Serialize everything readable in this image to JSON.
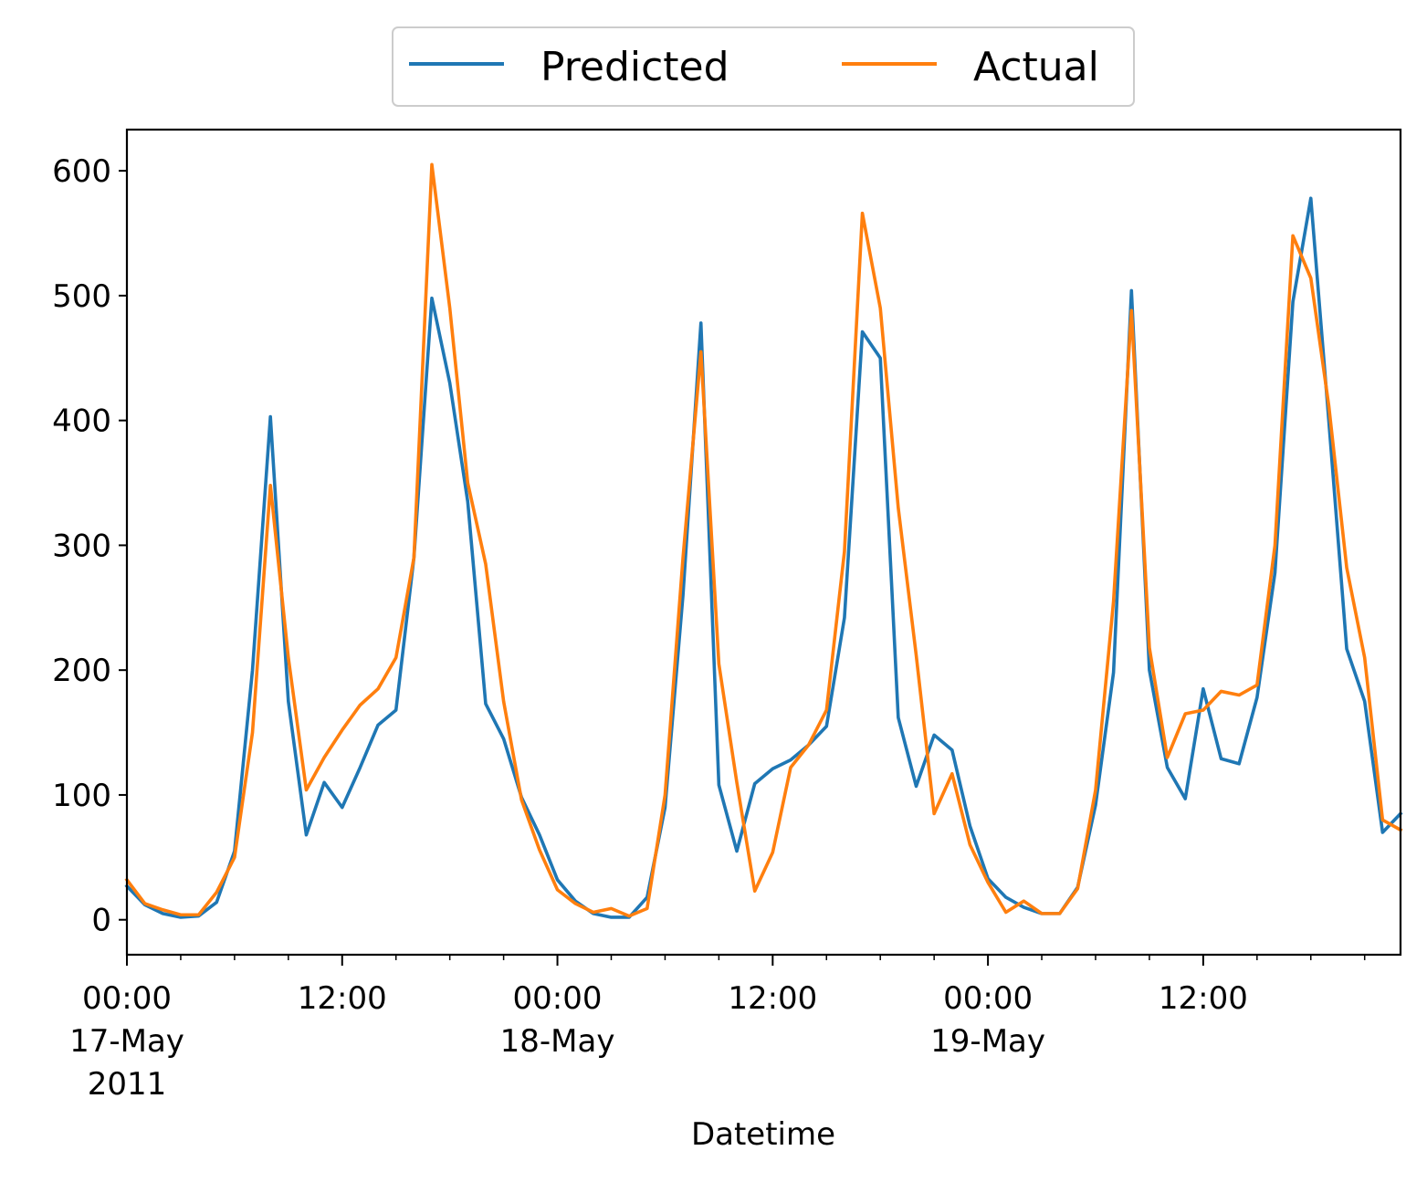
{
  "chart_data": {
    "type": "line",
    "title": "",
    "xlabel": "Datetime",
    "ylabel": "",
    "x_start": "2011-05-17 00:00",
    "x_end": "2011-05-19 23:00",
    "x_step": "1 hour",
    "xlim": [
      "2011-05-17 00:00",
      "2011-05-19 23:00"
    ],
    "ylim": [
      -28,
      633
    ],
    "yticks": [
      0,
      100,
      200,
      300,
      400,
      500,
      600
    ],
    "xticks": [
      {
        "at": "2011-05-17 00:00",
        "lines": [
          "00:00",
          "17-May",
          "2011"
        ]
      },
      {
        "at": "2011-05-17 12:00",
        "lines": [
          "12:00"
        ]
      },
      {
        "at": "2011-05-18 00:00",
        "lines": [
          "00:00",
          "18-May"
        ]
      },
      {
        "at": "2011-05-18 12:00",
        "lines": [
          "12:00"
        ]
      },
      {
        "at": "2011-05-19 00:00",
        "lines": [
          "00:00",
          "19-May"
        ]
      },
      {
        "at": "2011-05-19 12:00",
        "lines": [
          "12:00"
        ]
      }
    ],
    "legend": {
      "position": "top-center",
      "columns": 2
    },
    "grid": false,
    "series": [
      {
        "name": "Predicted",
        "color": "#1f77b4",
        "values": [
          27,
          12,
          5,
          2,
          3,
          14,
          55,
          200,
          403,
          175,
          68,
          110,
          90,
          122,
          156,
          168,
          290,
          498,
          430,
          335,
          173,
          145,
          98,
          68,
          32,
          15,
          5,
          2,
          2,
          18,
          90,
          260,
          478,
          108,
          55,
          109,
          121,
          128,
          140,
          155,
          242,
          471,
          450,
          162,
          107,
          148,
          136,
          75,
          33,
          18,
          10,
          5,
          5,
          26,
          92,
          198,
          504,
          200,
          122,
          97,
          185,
          129,
          125,
          178,
          278,
          495,
          578,
          400,
          217,
          175,
          70,
          85
        ]
      },
      {
        "name": "Actual",
        "color": "#ff7f0e",
        "values": [
          32,
          13,
          8,
          4,
          4,
          22,
          50,
          150,
          348,
          210,
          104,
          130,
          152,
          172,
          185,
          210,
          290,
          605,
          490,
          350,
          285,
          175,
          96,
          56,
          24,
          13,
          6,
          9,
          3,
          9,
          100,
          290,
          455,
          205,
          110,
          23,
          54,
          122,
          140,
          168,
          295,
          566,
          490,
          330,
          212,
          85,
          117,
          60,
          30,
          6,
          15,
          5,
          5,
          25,
          104,
          255,
          488,
          218,
          130,
          165,
          168,
          183,
          180,
          188,
          300,
          548,
          514,
          412,
          282,
          210,
          80,
          72
        ]
      }
    ]
  }
}
